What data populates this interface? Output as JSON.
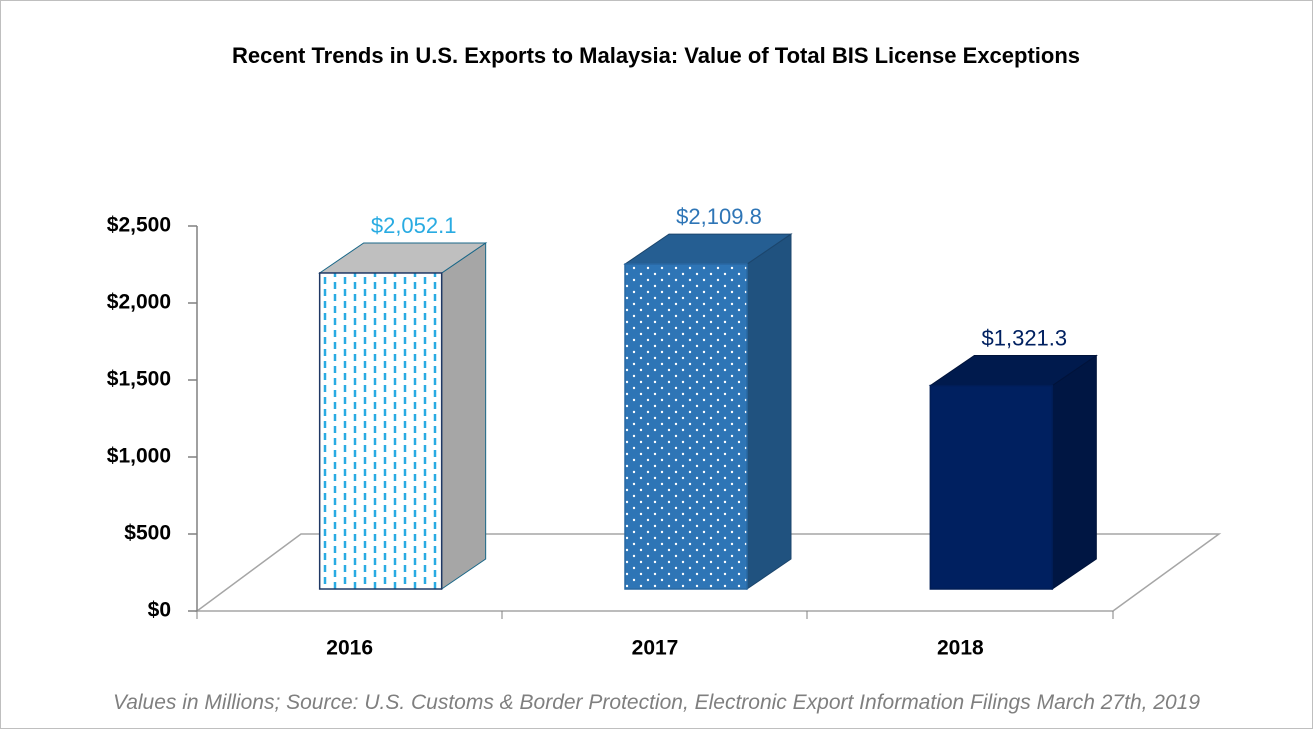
{
  "chart_data": {
    "type": "bar3d",
    "title": "Recent Trends in U.S. Exports to Malaysia: Value of Total BIS License Exceptions",
    "footnote": "Values in Millions; Source: U.S. Customs & Border Protection, Electronic Export Information Filings March 27th, 2019",
    "categories": [
      "2016",
      "2017",
      "2018"
    ],
    "values": [
      2052.1,
      2109.8,
      1321.3
    ],
    "value_labels": [
      "$2,052.1",
      "$2,109.8",
      "$1,321.3"
    ],
    "colors": [
      "#29abe2",
      "#2e75b6",
      "#002060"
    ],
    "ylim": [
      0,
      2500
    ],
    "yticks": [
      {
        "value": 0,
        "label": "$0"
      },
      {
        "value": 500,
        "label": "$500"
      },
      {
        "value": 1000,
        "label": "$1,000"
      },
      {
        "value": 1500,
        "label": "$1,500"
      },
      {
        "value": 2000,
        "label": "$2,000"
      },
      {
        "value": 2500,
        "label": "$2,500"
      }
    ]
  }
}
